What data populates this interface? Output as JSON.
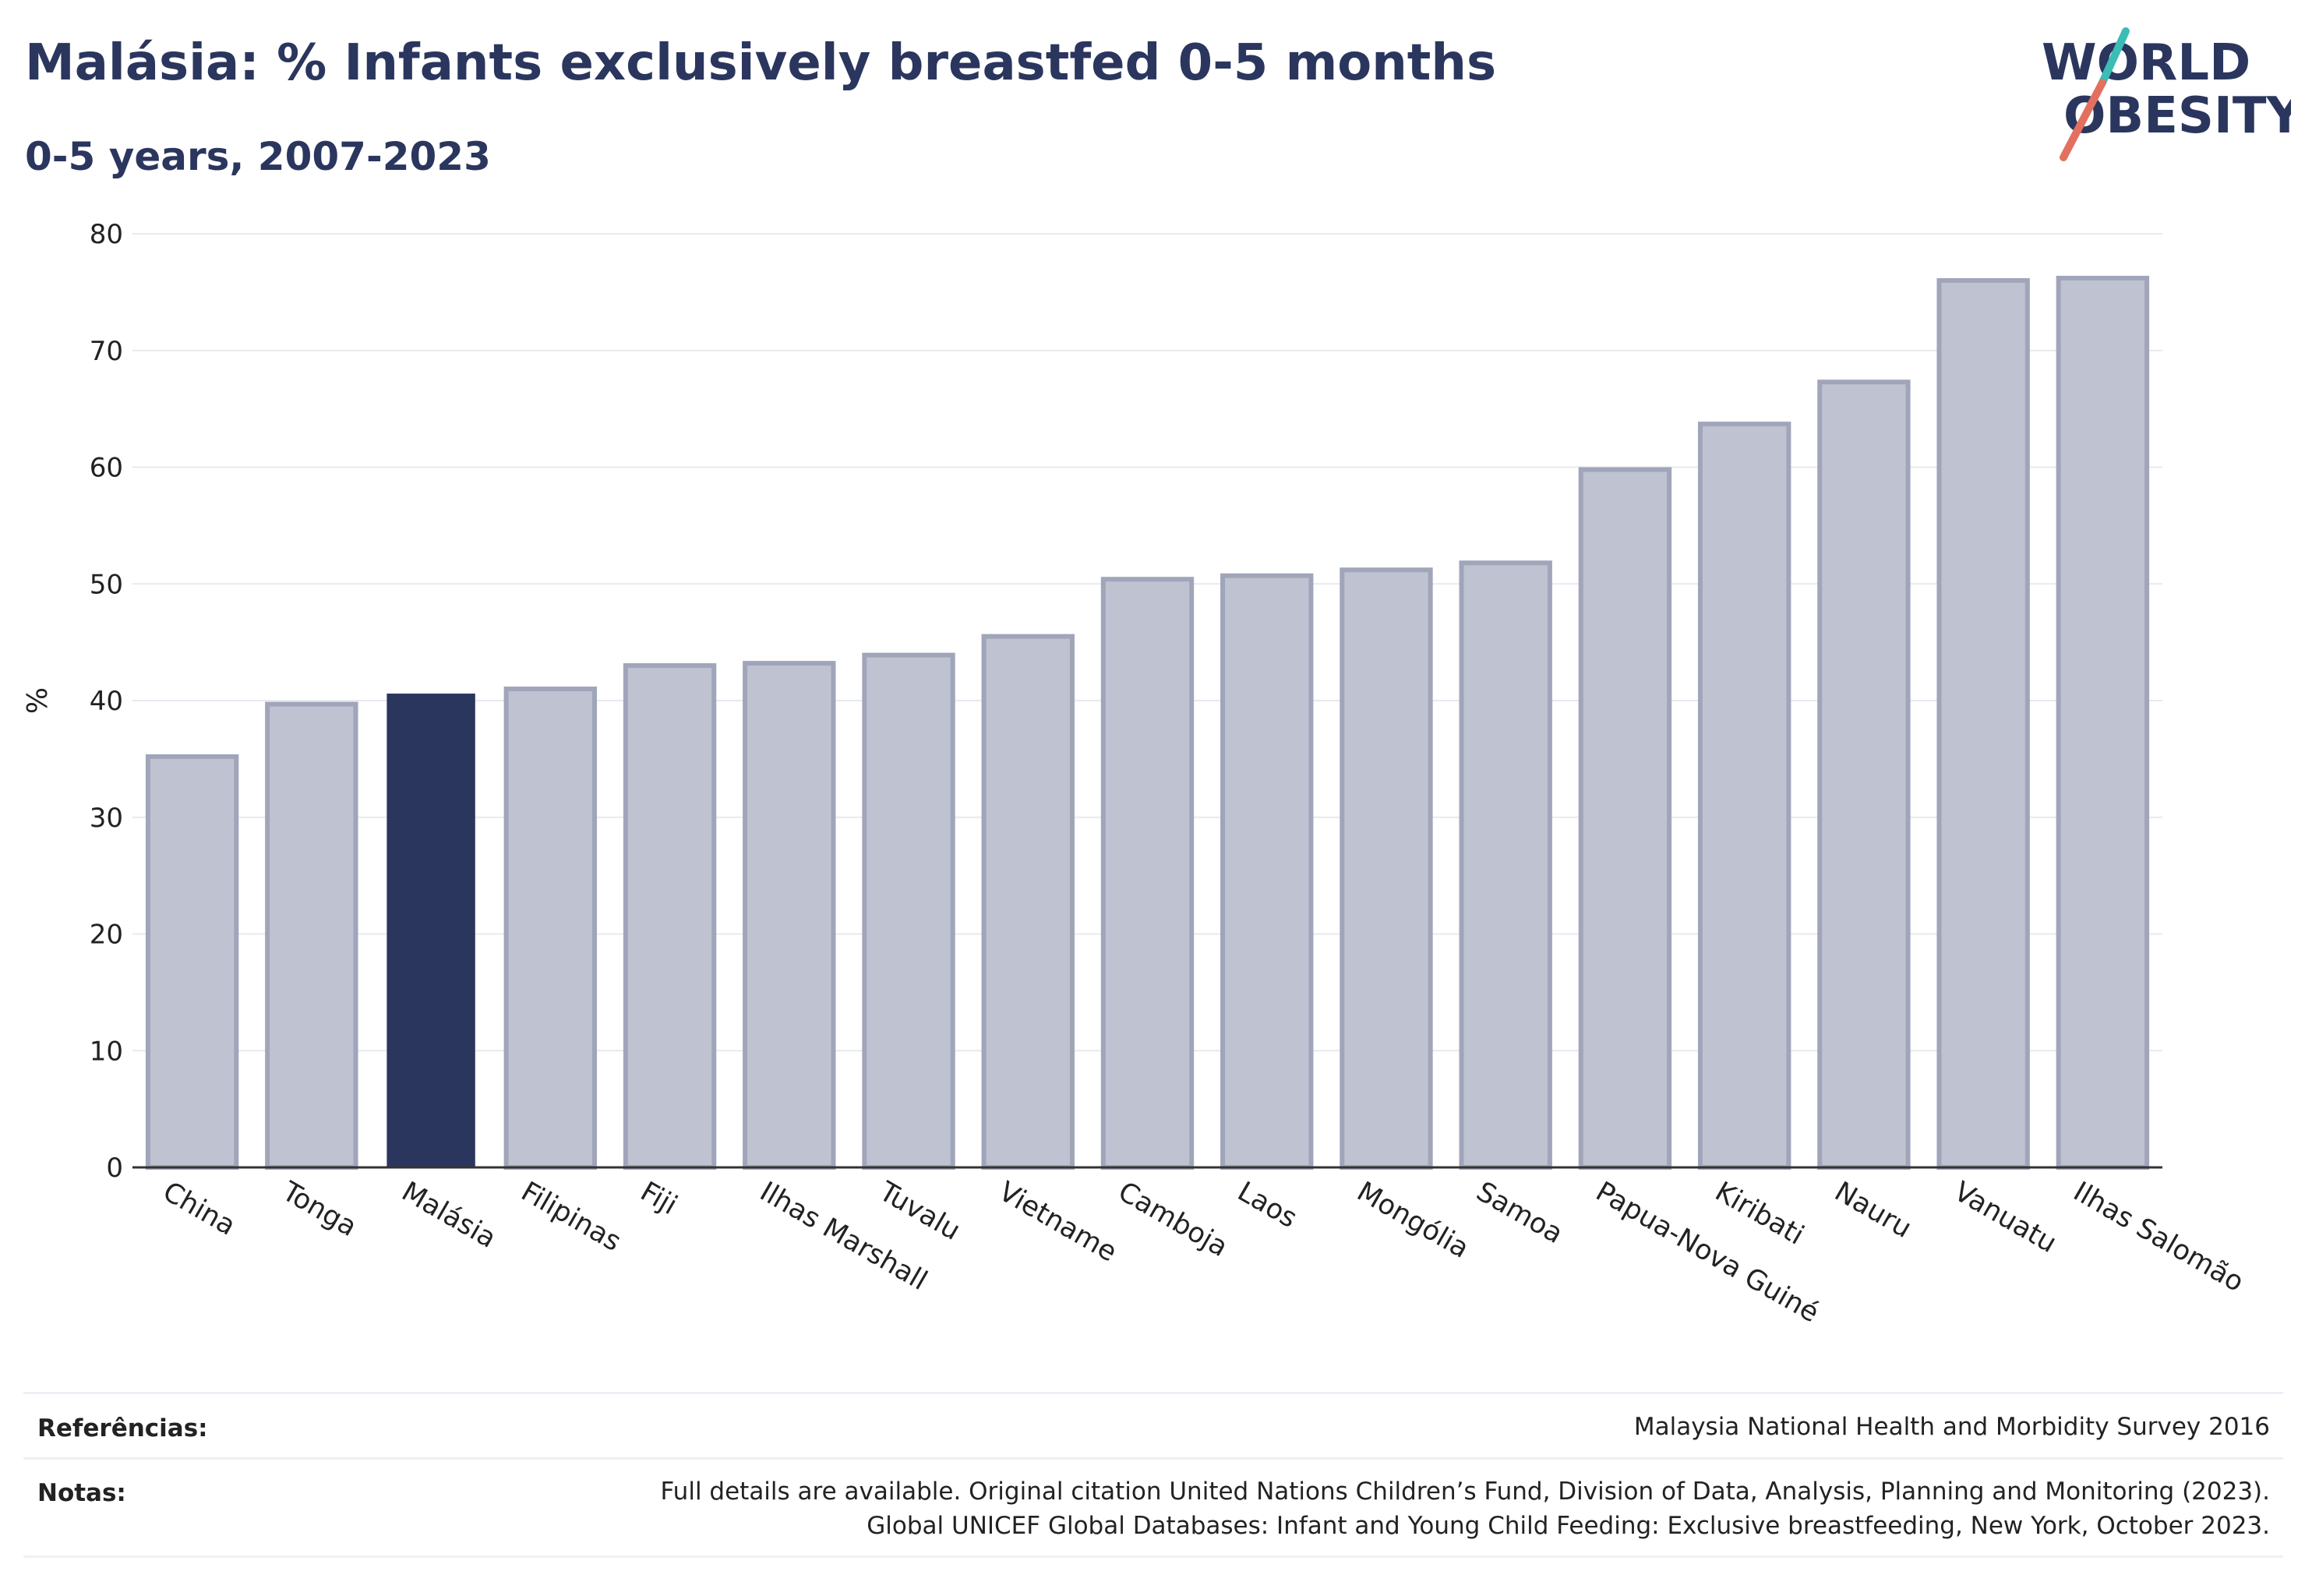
{
  "header": {
    "title": "Malásia: % Infants exclusively breastfed 0-5 months",
    "subtitle": "0-5 years, 2007-2023"
  },
  "logo": {
    "line1": "WORLD",
    "line2": "OBESITY"
  },
  "colors": {
    "highlight": "#2b365e",
    "bar": "#bfc2d0",
    "bar_outline": "#a0a5ba",
    "grid": "#e8e9ef",
    "logo_teal": "#3bbcb5",
    "logo_red": "#e3705f"
  },
  "chart_data": {
    "type": "bar",
    "ylabel": "%",
    "ylim": [
      0,
      80
    ],
    "yticks": [
      0,
      10,
      20,
      30,
      40,
      50,
      60,
      70,
      80
    ],
    "grid": true,
    "highlight_category": "Malásia",
    "categories": [
      "China",
      "Tonga",
      "Malásia",
      "Filipinas",
      "Fiji",
      "Ilhas Marshall",
      "Tuvalu",
      "Vietname",
      "Camboja",
      "Laos",
      "Mongólia",
      "Samoa",
      "Papua-Nova Guiné",
      "Kiribati",
      "Nauru",
      "Vanuatu",
      "Ilhas Salomão"
    ],
    "values": [
      35.2,
      39.7,
      40.6,
      41.0,
      43.0,
      43.2,
      43.9,
      45.5,
      50.4,
      50.7,
      51.2,
      51.8,
      59.8,
      63.7,
      67.3,
      76.0,
      76.2
    ]
  },
  "footer": {
    "references_label": "Referências:",
    "references_text": "Malaysia National Health and Morbidity Survey 2016",
    "notes_label": "Notas:",
    "notes_line1": "Full details are available. Original citation United Nations Children’s Fund, Division of Data, Analysis, Planning and Monitoring (2023).",
    "notes_line2": "Global UNICEF Global Databases: Infant and Young Child Feeding: Exclusive breastfeeding, New York, October 2023."
  }
}
